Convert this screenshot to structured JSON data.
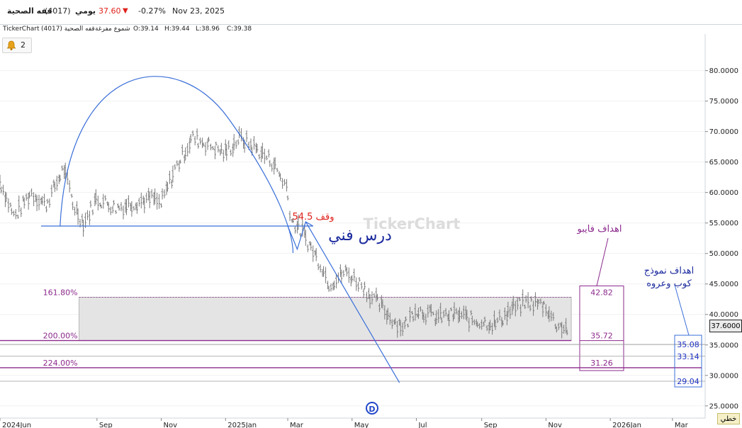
{
  "header": {
    "stock_name": "قفه الصحية",
    "stock_code": "(4017)",
    "period": "يومي",
    "price": "37.60",
    "change_pct": "-0.27%",
    "date": "Nov 23, 2025"
  },
  "infobar": {
    "source": "TickerChart",
    "symbol": "قفه الصحية (4017)",
    "chart_style": "شموع مفرغة",
    "open": "O:39.14",
    "high": "H:39.44",
    "low": "L:38.96",
    "close": "C:39.38"
  },
  "alert": {
    "count": "2",
    "icon": "bell-icon"
  },
  "watermark": "TickerChart",
  "scale_button": "خطي",
  "d_marker": "D",
  "colors": {
    "up": "#1c8c1c",
    "down": "#e0211b",
    "bars": "#7a7a7a",
    "trendline": "#3a6fd8",
    "fibo": "#8c2a8c",
    "stop": "#e0211b",
    "cup_target": "#1f34c4"
  },
  "chart_data": {
    "type": "bar",
    "ylim": [
      23,
      86
    ],
    "y_ticks": [
      "80.0000",
      "75.0000",
      "70.0000",
      "65.0000",
      "60.0000",
      "55.0000",
      "50.0000",
      "45.0000",
      "40.0000",
      "35.0000",
      "30.0000",
      "25.0000"
    ],
    "y_tick_values": [
      80,
      75,
      70,
      65,
      60,
      55,
      50,
      45,
      40,
      35,
      30,
      25
    ],
    "x_ticks": [
      "2024Jun",
      "Sep",
      "Nov",
      "2025Jan",
      "Mar",
      "May",
      "Jul",
      "Sep",
      "Nov",
      "2026Jan",
      "Mar"
    ],
    "x_tick_dates": [
      "2024-06-01",
      "2024-09-01",
      "2024-11-01",
      "2025-01-01",
      "2025-03-01",
      "2025-05-01",
      "2025-07-01",
      "2025-09-01",
      "2025-11-01",
      "2026-01-01",
      "2026-03-01"
    ],
    "x_start": "2024-06-01",
    "x_end": "2026-04-01",
    "last_price": "37.6000",
    "last_price_value": 37.6,
    "price_path": [
      [
        "2024-06-01",
        62
      ],
      [
        "2024-06-15",
        56
      ],
      [
        "2024-07-01",
        60
      ],
      [
        "2024-07-15",
        58
      ],
      [
        "2024-08-01",
        64
      ],
      [
        "2024-08-10",
        58
      ],
      [
        "2024-08-20",
        55
      ],
      [
        "2024-09-01",
        59
      ],
      [
        "2024-09-20",
        57.5
      ],
      [
        "2024-10-10",
        58.5
      ],
      [
        "2024-10-25",
        59
      ],
      [
        "2024-11-01",
        58
      ],
      [
        "2024-11-15",
        64
      ],
      [
        "2024-12-01",
        69
      ],
      [
        "2024-12-15",
        68
      ],
      [
        "2025-01-01",
        66.5
      ],
      [
        "2025-01-15",
        69
      ],
      [
        "2025-02-01",
        67
      ],
      [
        "2025-02-15",
        65
      ],
      [
        "2025-02-28",
        61
      ],
      [
        "2025-03-05",
        55.5
      ],
      [
        "2025-03-15",
        53.5
      ],
      [
        "2025-04-01",
        48.5
      ],
      [
        "2025-04-10",
        45
      ],
      [
        "2025-04-25",
        47
      ],
      [
        "2025-05-10",
        45
      ],
      [
        "2025-05-25",
        42
      ],
      [
        "2025-06-10",
        39
      ],
      [
        "2025-06-20",
        38
      ],
      [
        "2025-07-01",
        41
      ],
      [
        "2025-07-20",
        39.5
      ],
      [
        "2025-08-10",
        40
      ],
      [
        "2025-08-25",
        39
      ],
      [
        "2025-09-15",
        38.5
      ],
      [
        "2025-10-01",
        41
      ],
      [
        "2025-10-15",
        42
      ],
      [
        "2025-11-01",
        41.5
      ],
      [
        "2025-11-10",
        38.5
      ],
      [
        "2025-11-23",
        37.6
      ]
    ],
    "fibonacci": [
      {
        "label": "161.80%",
        "value": 42.82,
        "value_label": "42.82"
      },
      {
        "label": "200.00%",
        "value": 35.72,
        "value_label": "35.72"
      },
      {
        "label": "224.00%",
        "value": 31.26,
        "value_label": "31.26"
      }
    ],
    "cup_targets": [
      {
        "value": 35.08,
        "label": "35.08"
      },
      {
        "value": 33.14,
        "label": "33.14"
      },
      {
        "value": 29.04,
        "label": "29.04"
      }
    ],
    "neckline_value": 54.5,
    "annotations": {
      "stop": "وقف 54.5",
      "lesson": "درس فني",
      "fibo_targets": "اهداف فايبو",
      "cup_line1": "اهداف نموذج",
      "cup_line2": "كوب وعروه"
    }
  }
}
